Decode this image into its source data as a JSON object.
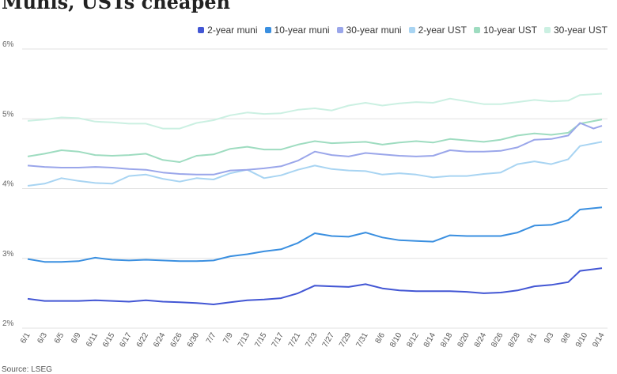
{
  "chart_data": {
    "type": "line",
    "title": "Munis, USTs cheapen",
    "xlabel": "",
    "ylabel": "",
    "ylim": [
      2,
      6
    ],
    "y_ticks": [
      "2%",
      "3%",
      "4%",
      "5%",
      "6%"
    ],
    "x_tick_labels": [
      "6/1",
      "6/3",
      "6/5",
      "6/9",
      "6/11",
      "6/15",
      "6/17",
      "6/22",
      "6/24",
      "6/26",
      "6/30",
      "7/7",
      "7/9",
      "7/13",
      "7/15",
      "7/17",
      "7/21",
      "7/23",
      "7/27",
      "7/29",
      "7/31",
      "8/6",
      "8/10",
      "8/12",
      "8/14",
      "8/18",
      "8/20",
      "8/24",
      "8/26",
      "8/28",
      "9/1",
      "9/3",
      "9/8",
      "9/10",
      "9/14"
    ],
    "grid": true,
    "legend_position": "top-right",
    "series": [
      {
        "name": "2-year muni",
        "color": "#4256d4",
        "points": [
          [
            0,
            2.42
          ],
          [
            1,
            2.39
          ],
          [
            2,
            2.39
          ],
          [
            3,
            2.39
          ],
          [
            4,
            2.4
          ],
          [
            5,
            2.39
          ],
          [
            6,
            2.38
          ],
          [
            7,
            2.4
          ],
          [
            8,
            2.38
          ],
          [
            9,
            2.37
          ],
          [
            10,
            2.36
          ],
          [
            11,
            2.34
          ],
          [
            12,
            2.37
          ],
          [
            13,
            2.4
          ],
          [
            14,
            2.41
          ],
          [
            15,
            2.43
          ],
          [
            16,
            2.5
          ],
          [
            17,
            2.61
          ],
          [
            18,
            2.6
          ],
          [
            19,
            2.59
          ],
          [
            20,
            2.63
          ],
          [
            21,
            2.57
          ],
          [
            22,
            2.54
          ],
          [
            23,
            2.53
          ],
          [
            24,
            2.53
          ],
          [
            25,
            2.53
          ],
          [
            26,
            2.52
          ],
          [
            27,
            2.5
          ],
          [
            28,
            2.51
          ],
          [
            29,
            2.54
          ],
          [
            30,
            2.6
          ],
          [
            31,
            2.62
          ],
          [
            32,
            2.66
          ],
          [
            32.7,
            2.82
          ],
          [
            34,
            2.86
          ]
        ]
      },
      {
        "name": "10-year muni",
        "color": "#3a8fe0",
        "points": [
          [
            0,
            2.99
          ],
          [
            1,
            2.95
          ],
          [
            2,
            2.95
          ],
          [
            3,
            2.96
          ],
          [
            4,
            3.01
          ],
          [
            5,
            2.98
          ],
          [
            6,
            2.97
          ],
          [
            7,
            2.98
          ],
          [
            8,
            2.97
          ],
          [
            9,
            2.96
          ],
          [
            10,
            2.96
          ],
          [
            11,
            2.97
          ],
          [
            12,
            3.03
          ],
          [
            13,
            3.06
          ],
          [
            14,
            3.1
          ],
          [
            15,
            3.13
          ],
          [
            16,
            3.22
          ],
          [
            17,
            3.36
          ],
          [
            18,
            3.32
          ],
          [
            19,
            3.31
          ],
          [
            20,
            3.37
          ],
          [
            21,
            3.3
          ],
          [
            22,
            3.26
          ],
          [
            23,
            3.25
          ],
          [
            24,
            3.24
          ],
          [
            25,
            3.33
          ],
          [
            26,
            3.32
          ],
          [
            27,
            3.32
          ],
          [
            28,
            3.32
          ],
          [
            29,
            3.37
          ],
          [
            30,
            3.47
          ],
          [
            31,
            3.48
          ],
          [
            32,
            3.55
          ],
          [
            32.7,
            3.7
          ],
          [
            34,
            3.73
          ]
        ]
      },
      {
        "name": "30-year muni",
        "color": "#9aa6ea",
        "points": [
          [
            0,
            4.33
          ],
          [
            1,
            4.31
          ],
          [
            2,
            4.3
          ],
          [
            3,
            4.3
          ],
          [
            4,
            4.31
          ],
          [
            5,
            4.3
          ],
          [
            6,
            4.28
          ],
          [
            7,
            4.27
          ],
          [
            8,
            4.23
          ],
          [
            9,
            4.21
          ],
          [
            10,
            4.2
          ],
          [
            11,
            4.2
          ],
          [
            12,
            4.26
          ],
          [
            13,
            4.27
          ],
          [
            14,
            4.29
          ],
          [
            15,
            4.32
          ],
          [
            16,
            4.4
          ],
          [
            17,
            4.53
          ],
          [
            18,
            4.48
          ],
          [
            19,
            4.46
          ],
          [
            20,
            4.51
          ],
          [
            21,
            4.49
          ],
          [
            22,
            4.47
          ],
          [
            23,
            4.46
          ],
          [
            24,
            4.47
          ],
          [
            25,
            4.55
          ],
          [
            26,
            4.53
          ],
          [
            27,
            4.53
          ],
          [
            28,
            4.54
          ],
          [
            29,
            4.59
          ],
          [
            30,
            4.7
          ],
          [
            31,
            4.71
          ],
          [
            32,
            4.76
          ],
          [
            32.7,
            4.94
          ],
          [
            33.5,
            4.86
          ],
          [
            34,
            4.9
          ]
        ]
      },
      {
        "name": "2-year UST",
        "color": "#a8d4f2",
        "points": [
          [
            0,
            4.04
          ],
          [
            1,
            4.07
          ],
          [
            2,
            4.15
          ],
          [
            3,
            4.11
          ],
          [
            4,
            4.08
          ],
          [
            5,
            4.07
          ],
          [
            6,
            4.18
          ],
          [
            7,
            4.2
          ],
          [
            8,
            4.14
          ],
          [
            9,
            4.1
          ],
          [
            10,
            4.15
          ],
          [
            11,
            4.13
          ],
          [
            12,
            4.22
          ],
          [
            13,
            4.27
          ],
          [
            14,
            4.15
          ],
          [
            15,
            4.19
          ],
          [
            16,
            4.27
          ],
          [
            17,
            4.33
          ],
          [
            18,
            4.28
          ],
          [
            19,
            4.26
          ],
          [
            20,
            4.25
          ],
          [
            21,
            4.2
          ],
          [
            22,
            4.22
          ],
          [
            23,
            4.2
          ],
          [
            24,
            4.16
          ],
          [
            25,
            4.18
          ],
          [
            26,
            4.18
          ],
          [
            27,
            4.21
          ],
          [
            28,
            4.23
          ],
          [
            29,
            4.35
          ],
          [
            30,
            4.39
          ],
          [
            31,
            4.35
          ],
          [
            32,
            4.42
          ],
          [
            32.7,
            4.61
          ],
          [
            34,
            4.67
          ]
        ]
      },
      {
        "name": "10-year UST",
        "color": "#9edcc0",
        "points": [
          [
            0,
            4.46
          ],
          [
            1,
            4.5
          ],
          [
            2,
            4.55
          ],
          [
            3,
            4.53
          ],
          [
            4,
            4.48
          ],
          [
            5,
            4.47
          ],
          [
            6,
            4.48
          ],
          [
            7,
            4.5
          ],
          [
            8,
            4.41
          ],
          [
            9,
            4.38
          ],
          [
            10,
            4.47
          ],
          [
            11,
            4.49
          ],
          [
            12,
            4.57
          ],
          [
            13,
            4.6
          ],
          [
            14,
            4.56
          ],
          [
            15,
            4.56
          ],
          [
            16,
            4.63
          ],
          [
            17,
            4.68
          ],
          [
            18,
            4.65
          ],
          [
            19,
            4.66
          ],
          [
            20,
            4.67
          ],
          [
            21,
            4.63
          ],
          [
            22,
            4.66
          ],
          [
            23,
            4.68
          ],
          [
            24,
            4.66
          ],
          [
            25,
            4.71
          ],
          [
            26,
            4.69
          ],
          [
            27,
            4.67
          ],
          [
            28,
            4.7
          ],
          [
            29,
            4.76
          ],
          [
            30,
            4.79
          ],
          [
            31,
            4.77
          ],
          [
            32,
            4.8
          ],
          [
            32.7,
            4.93
          ],
          [
            34,
            4.99
          ]
        ]
      },
      {
        "name": "30-year UST",
        "color": "#cbf0e2",
        "points": [
          [
            0,
            4.97
          ],
          [
            1,
            4.99
          ],
          [
            2,
            5.02
          ],
          [
            3,
            5.01
          ],
          [
            4,
            4.96
          ],
          [
            5,
            4.95
          ],
          [
            6,
            4.93
          ],
          [
            7,
            4.93
          ],
          [
            8,
            4.86
          ],
          [
            9,
            4.86
          ],
          [
            10,
            4.94
          ],
          [
            11,
            4.98
          ],
          [
            12,
            5.05
          ],
          [
            13,
            5.09
          ],
          [
            14,
            5.07
          ],
          [
            15,
            5.08
          ],
          [
            16,
            5.13
          ],
          [
            17,
            5.15
          ],
          [
            18,
            5.12
          ],
          [
            19,
            5.19
          ],
          [
            20,
            5.23
          ],
          [
            21,
            5.19
          ],
          [
            22,
            5.22
          ],
          [
            23,
            5.24
          ],
          [
            24,
            5.23
          ],
          [
            25,
            5.29
          ],
          [
            26,
            5.25
          ],
          [
            27,
            5.21
          ],
          [
            28,
            5.21
          ],
          [
            29,
            5.24
          ],
          [
            30,
            5.27
          ],
          [
            31,
            5.25
          ],
          [
            32,
            5.26
          ],
          [
            32.7,
            5.34
          ],
          [
            34,
            5.36
          ]
        ]
      }
    ]
  },
  "source_label": "Source: LSEG"
}
